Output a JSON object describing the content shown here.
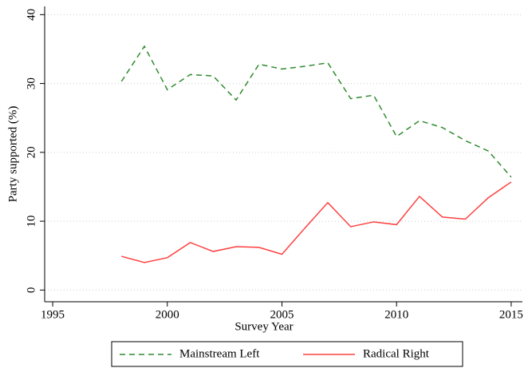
{
  "chart_data": {
    "type": "line",
    "x": [
      1998,
      1999,
      2000,
      2001,
      2002,
      2003,
      2004,
      2005,
      2006,
      2007,
      2008,
      2009,
      2010,
      2011,
      2012,
      2013,
      2014,
      2015
    ],
    "xlabel": "Survey Year",
    "ylabel": "Party supported (%)",
    "xlim": [
      1994.65,
      2015.49
    ],
    "xticks": [
      1995,
      2000,
      2005,
      2010,
      2015
    ],
    "ylim": [
      -1.7,
      41.2
    ],
    "yticks": [
      0,
      10,
      20,
      30,
      40
    ],
    "grid": true,
    "series": [
      {
        "name": "Mainstream Left",
        "color": "#2e8b2e",
        "dashed": true,
        "values": [
          30.3,
          35.4,
          29.1,
          31.3,
          31.1,
          27.6,
          32.8,
          32.1,
          32.5,
          33.0,
          27.8,
          28.3,
          22.3,
          24.6,
          23.6,
          21.7,
          20.2,
          16.4
        ]
      },
      {
        "name": "Radical Right",
        "color": "#ff4040",
        "dashed": false,
        "values": [
          4.9,
          4.0,
          4.7,
          6.9,
          5.6,
          6.3,
          6.2,
          5.2,
          9.0,
          12.7,
          9.2,
          9.9,
          9.5,
          13.6,
          10.6,
          10.3,
          13.4,
          15.7
        ]
      }
    ]
  }
}
